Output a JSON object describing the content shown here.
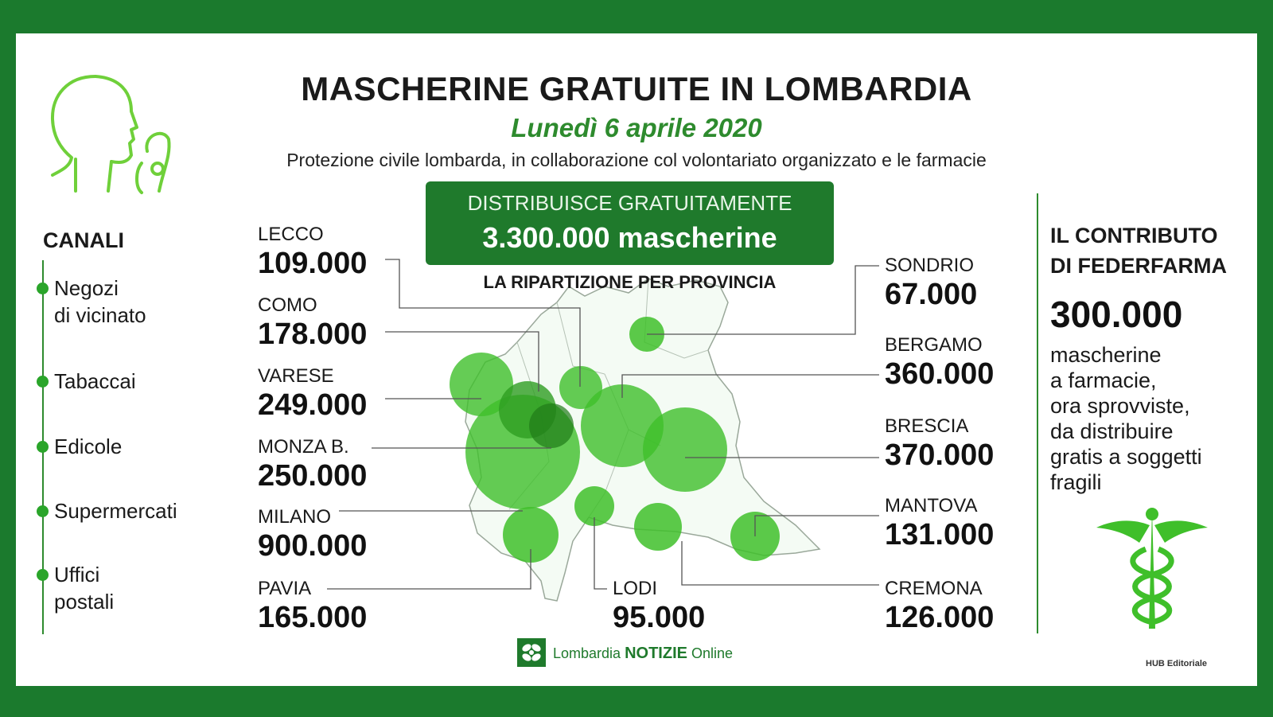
{
  "title": "MASCHERINE GRATUITE IN LOMBARDIA",
  "date": "Lunedì 6 aprile 2020",
  "subtitle": "Protezione civile lombarda, in collaborazione col volontariato organizzato e le farmacie",
  "distribution": {
    "line1": "DISTRIBUISCE GRATUITAMENTE",
    "line2": "3.300.000 mascherine"
  },
  "breakdown_label": "LA RIPARTIZIONE PER PROVINCIA",
  "channels": {
    "title": "CANALI",
    "items": [
      {
        "line1": "Negozi",
        "line2": "di vicinato"
      },
      {
        "line1": "Tabaccai",
        "line2": ""
      },
      {
        "line1": "Edicole",
        "line2": ""
      },
      {
        "line1": "Supermercati",
        "line2": ""
      },
      {
        "line1": "Uffici",
        "line2": "postali"
      }
    ]
  },
  "provinces": {
    "lecco": {
      "name": "LECCO",
      "value": "109.000"
    },
    "como": {
      "name": "COMO",
      "value": "178.000"
    },
    "varese": {
      "name": "VARESE",
      "value": "249.000"
    },
    "monza": {
      "name": "MONZA B.",
      "value": "250.000"
    },
    "milano": {
      "name": "MILANO",
      "value": "900.000"
    },
    "pavia": {
      "name": "PAVIA",
      "value": "165.000"
    },
    "lodi": {
      "name": "LODI",
      "value": "95.000"
    },
    "sondrio": {
      "name": "SONDRIO",
      "value": "67.000"
    },
    "bergamo": {
      "name": "BERGAMO",
      "value": "360.000"
    },
    "brescia": {
      "name": "BRESCIA",
      "value": "370.000"
    },
    "mantova": {
      "name": "MANTOVA",
      "value": "131.000"
    },
    "cremona": {
      "name": "CREMONA",
      "value": "126.000"
    }
  },
  "federfarma": {
    "title_line1": "IL CONTRIBUTO",
    "title_line2": "DI FEDERFARMA",
    "number": "300.000",
    "text_lines": [
      "mascherine",
      "a farmacie,",
      "ora sprovviste,",
      "da distribuire",
      "gratis a soggetti",
      "fragili"
    ]
  },
  "logo": {
    "part1": "Lombardia",
    "part2": "NOTIZIE",
    "part3": "Online"
  },
  "credit": "HUB Editoriale",
  "colors": {
    "frame_green": "#1b7a2d",
    "accent_green": "#2aa52a",
    "bubble_green": "#3fbf2a"
  },
  "icons": [
    "face-mask-icon",
    "caduceus-icon",
    "lombardia-logo-icon"
  ]
}
